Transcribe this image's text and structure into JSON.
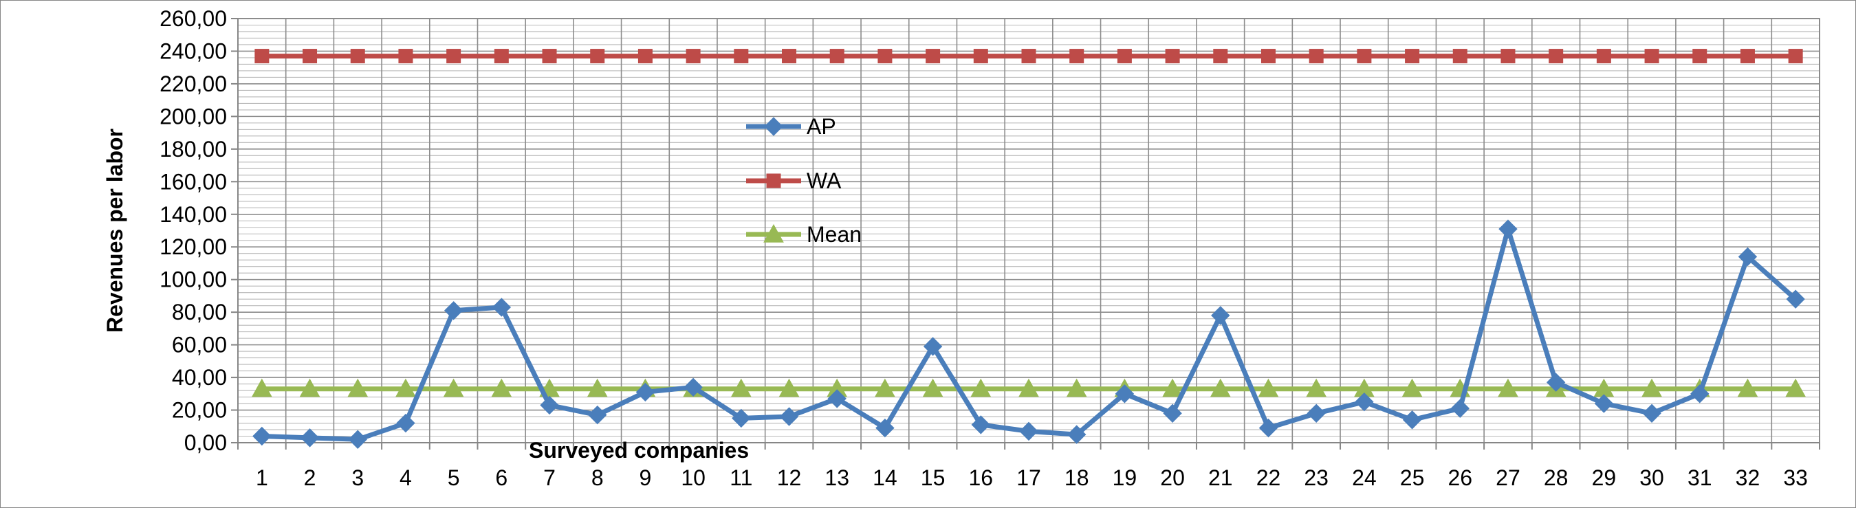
{
  "chart_data": {
    "type": "line",
    "title": "",
    "xlabel": "Surveyed companies",
    "ylabel": "Revenues per labor",
    "ylim": [
      0,
      260
    ],
    "ytick_step": 20,
    "minor_grid_step": 4,
    "ytick_labels": [
      "0,00",
      "20,00",
      "40,00",
      "60,00",
      "80,00",
      "100,00",
      "120,00",
      "140,00",
      "160,00",
      "180,00",
      "200,00",
      "220,00",
      "240,00",
      "260,00"
    ],
    "categories": [
      "1",
      "2",
      "3",
      "4",
      "5",
      "6",
      "7",
      "8",
      "9",
      "10",
      "11",
      "12",
      "13",
      "14",
      "15",
      "16",
      "17",
      "18",
      "19",
      "20",
      "21",
      "22",
      "23",
      "24",
      "25",
      "26",
      "27",
      "28",
      "29",
      "30",
      "31",
      "32",
      "33"
    ],
    "grid": true,
    "legend_position": "center-left",
    "series": [
      {
        "name": "AP",
        "color": "#4a7ebb",
        "marker": "diamond",
        "values": [
          4.0,
          3.0,
          2.0,
          12.0,
          81.0,
          83.0,
          23.0,
          17.0,
          31.0,
          34.0,
          15.0,
          16.0,
          27.0,
          9.0,
          59.0,
          11.0,
          7.0,
          5.0,
          30.0,
          18.0,
          78.0,
          9.0,
          18.0,
          25.0,
          14.0,
          21.0,
          131.0,
          37.0,
          24.0,
          18.0,
          30.0,
          114.0,
          88.0
        ]
      },
      {
        "name": "WA",
        "color": "#be4b48",
        "marker": "square",
        "values": [
          237,
          237,
          237,
          237,
          237,
          237,
          237,
          237,
          237,
          237,
          237,
          237,
          237,
          237,
          237,
          237,
          237,
          237,
          237,
          237,
          237,
          237,
          237,
          237,
          237,
          237,
          237,
          237,
          237,
          237,
          237,
          237,
          237
        ]
      },
      {
        "name": "Mean",
        "color": "#98b954",
        "marker": "triangle",
        "values": [
          33,
          33,
          33,
          33,
          33,
          33,
          33,
          33,
          33,
          33,
          33,
          33,
          33,
          33,
          33,
          33,
          33,
          33,
          33,
          33,
          33,
          33,
          33,
          33,
          33,
          33,
          33,
          33,
          33,
          33,
          33,
          33,
          33
        ]
      }
    ]
  }
}
